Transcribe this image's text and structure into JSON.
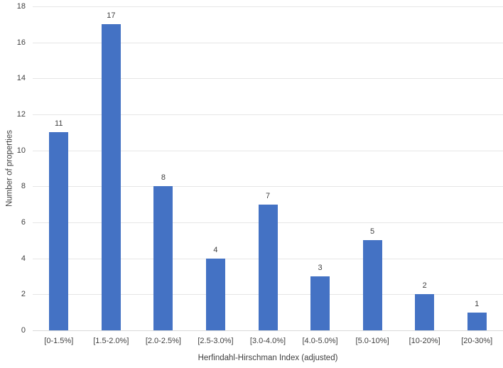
{
  "chart_data": {
    "type": "bar",
    "title": "",
    "xlabel": "Herfindahl-Hirschman Index (adjusted)",
    "ylabel": "Number of properties",
    "categories": [
      "[0-1.5%]",
      "[1.5-2.0%]",
      "[2.0-2.5%]",
      "[2.5-3.0%]",
      "[3.0-4.0%]",
      "[4.0-5.0%]",
      "[5.0-10%]",
      "[10-20%]",
      "[20-30%]"
    ],
    "values": [
      11,
      17,
      8,
      4,
      7,
      3,
      5,
      2,
      1
    ],
    "ylim": [
      0,
      18
    ],
    "ytick_step": 2,
    "yticks": [
      0,
      2,
      4,
      6,
      8,
      10,
      12,
      14,
      16,
      18
    ],
    "grid": true,
    "legend": false,
    "colors": {
      "bar": "#4472c4",
      "gridline": "#e6e6e6",
      "axis_line": "#d9d9d9",
      "text": "#404040",
      "background": "#ffffff"
    }
  }
}
